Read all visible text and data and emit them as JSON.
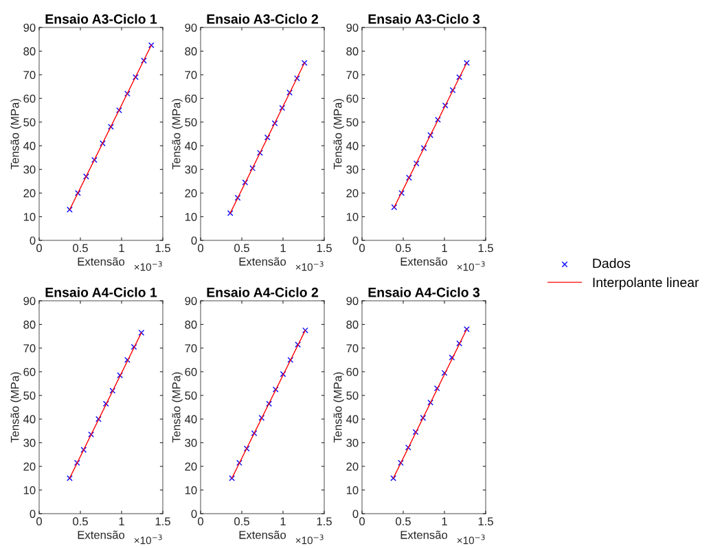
{
  "chart_data": [
    {
      "type": "scatter",
      "title": "Ensaio A3-Ciclo 1",
      "xlabel": "Extensão",
      "ylabel": "Tensão (MPa)",
      "annotations": [
        "×10$^{−3}$"
      ],
      "xlim": [
        0,
        1.5
      ],
      "xticks": [
        0,
        0.5,
        1,
        1.5
      ],
      "ylim": [
        0,
        90
      ],
      "yticks": [
        0,
        10,
        20,
        30,
        40,
        50,
        60,
        70,
        80,
        90
      ],
      "grid": false,
      "legend": "right",
      "series": [
        {
          "name": "Dados",
          "marker": "cross",
          "color": "#0000ff",
          "x": [
            0.37,
            0.47,
            0.57,
            0.67,
            0.77,
            0.87,
            0.97,
            1.07,
            1.17,
            1.27,
            1.36
          ],
          "values": [
            13,
            20,
            27,
            34,
            41,
            48,
            55,
            62,
            69,
            76,
            82.5
          ]
        },
        {
          "name": "Interpolante linear",
          "type": "line",
          "color": "#ff0000",
          "x": [
            0.37,
            1.36
          ],
          "values": [
            13,
            82.5
          ]
        }
      ]
    },
    {
      "type": "scatter",
      "title": "Ensaio A3-Ciclo 2",
      "xlabel": "Extensão",
      "ylabel": "Tensão (MPa)",
      "annotations": [
        "×10$^{−3}$"
      ],
      "xlim": [
        0,
        1.5
      ],
      "xticks": [
        0,
        0.5,
        1,
        1.5
      ],
      "ylim": [
        0,
        90
      ],
      "yticks": [
        0,
        10,
        20,
        30,
        40,
        50,
        60,
        70,
        80,
        90
      ],
      "grid": false,
      "series": [
        {
          "marker": "cross",
          "color": "#0000ff",
          "x": [
            0.36,
            0.45,
            0.54,
            0.63,
            0.72,
            0.81,
            0.9,
            0.99,
            1.08,
            1.17,
            1.26
          ],
          "values": [
            11.5,
            18,
            24.5,
            30.5,
            37,
            43.5,
            49.5,
            56,
            62.5,
            68.5,
            75
          ]
        },
        {
          "type": "line",
          "color": "#ff0000",
          "x": [
            0.36,
            1.26
          ],
          "values": [
            11.5,
            75
          ]
        }
      ]
    },
    {
      "type": "scatter",
      "title": "Ensaio A3-Ciclo 3",
      "xlabel": "Extensão",
      "ylabel": "Tensão (MPa)",
      "annotations": [
        "×10$^{−3}$"
      ],
      "xlim": [
        0,
        1.5
      ],
      "xticks": [
        0,
        0.5,
        1,
        1.5
      ],
      "ylim": [
        0,
        90
      ],
      "yticks": [
        0,
        10,
        20,
        30,
        40,
        50,
        60,
        70,
        80,
        90
      ],
      "grid": false,
      "series": [
        {
          "marker": "cross",
          "color": "#0000ff",
          "x": [
            0.39,
            0.48,
            0.57,
            0.66,
            0.75,
            0.83,
            0.92,
            1.01,
            1.1,
            1.18,
            1.27
          ],
          "values": [
            14,
            20,
            26.5,
            32.5,
            39,
            44.5,
            51,
            57,
            63.5,
            69,
            75
          ]
        },
        {
          "type": "line",
          "color": "#ff0000",
          "x": [
            0.39,
            1.27
          ],
          "values": [
            14,
            75
          ]
        }
      ]
    },
    {
      "type": "scatter",
      "title": "Ensaio A4-Ciclo 1",
      "xlabel": "Extensão",
      "ylabel": "Tensão (MPa)",
      "annotations": [
        "×10$^{−3}$"
      ],
      "xlim": [
        0,
        1.5
      ],
      "xticks": [
        0,
        0.5,
        1,
        1.5
      ],
      "ylim": [
        0,
        90
      ],
      "yticks": [
        0,
        10,
        20,
        30,
        40,
        50,
        60,
        70,
        80,
        90
      ],
      "grid": false,
      "series": [
        {
          "marker": "cross",
          "color": "#0000ff",
          "x": [
            0.37,
            0.46,
            0.54,
            0.63,
            0.72,
            0.81,
            0.89,
            0.98,
            1.07,
            1.15,
            1.24
          ],
          "values": [
            15,
            21.5,
            27,
            33.5,
            40,
            46.5,
            52,
            58.5,
            65,
            70.5,
            76.5
          ]
        },
        {
          "type": "line",
          "color": "#ff0000",
          "x": [
            0.37,
            1.24
          ],
          "values": [
            15,
            76.5
          ]
        }
      ]
    },
    {
      "type": "scatter",
      "title": "Ensaio A4-Ciclo 2",
      "xlabel": "Extensão",
      "ylabel": "Tensão (MPa)",
      "annotations": [
        "×10$^{−3}$"
      ],
      "xlim": [
        0,
        1.5
      ],
      "xticks": [
        0,
        0.5,
        1,
        1.5
      ],
      "ylim": [
        0,
        90
      ],
      "yticks": [
        0,
        10,
        20,
        30,
        40,
        50,
        60,
        70,
        80,
        90
      ],
      "grid": false,
      "series": [
        {
          "marker": "cross",
          "color": "#0000ff",
          "x": [
            0.38,
            0.47,
            0.56,
            0.65,
            0.74,
            0.83,
            0.91,
            1.0,
            1.09,
            1.18,
            1.27
          ],
          "values": [
            15,
            21.5,
            27.5,
            34,
            40.5,
            46.5,
            52.5,
            59,
            65,
            71.5,
            77.5
          ]
        },
        {
          "type": "line",
          "color": "#ff0000",
          "x": [
            0.38,
            1.27
          ],
          "values": [
            15,
            77.5
          ]
        }
      ]
    },
    {
      "type": "scatter",
      "title": "Ensaio A4-Ciclo 3",
      "xlabel": "Extensão",
      "ylabel": "Tensão (MPa)",
      "annotations": [
        "×10$^{−3}$"
      ],
      "xlim": [
        0,
        1.5
      ],
      "xticks": [
        0,
        0.5,
        1,
        1.5
      ],
      "ylim": [
        0,
        90
      ],
      "yticks": [
        0,
        10,
        20,
        30,
        40,
        50,
        60,
        70,
        80,
        90
      ],
      "grid": false,
      "series": [
        {
          "marker": "cross",
          "color": "#0000ff",
          "x": [
            0.38,
            0.47,
            0.56,
            0.65,
            0.74,
            0.83,
            0.91,
            1.0,
            1.09,
            1.18,
            1.27
          ],
          "values": [
            15,
            21.5,
            28,
            34.5,
            40.5,
            47,
            53,
            59.5,
            66,
            72,
            78
          ]
        },
        {
          "type": "line",
          "color": "#ff0000",
          "x": [
            0.38,
            1.27
          ],
          "values": [
            15,
            78
          ]
        }
      ]
    }
  ]
}
